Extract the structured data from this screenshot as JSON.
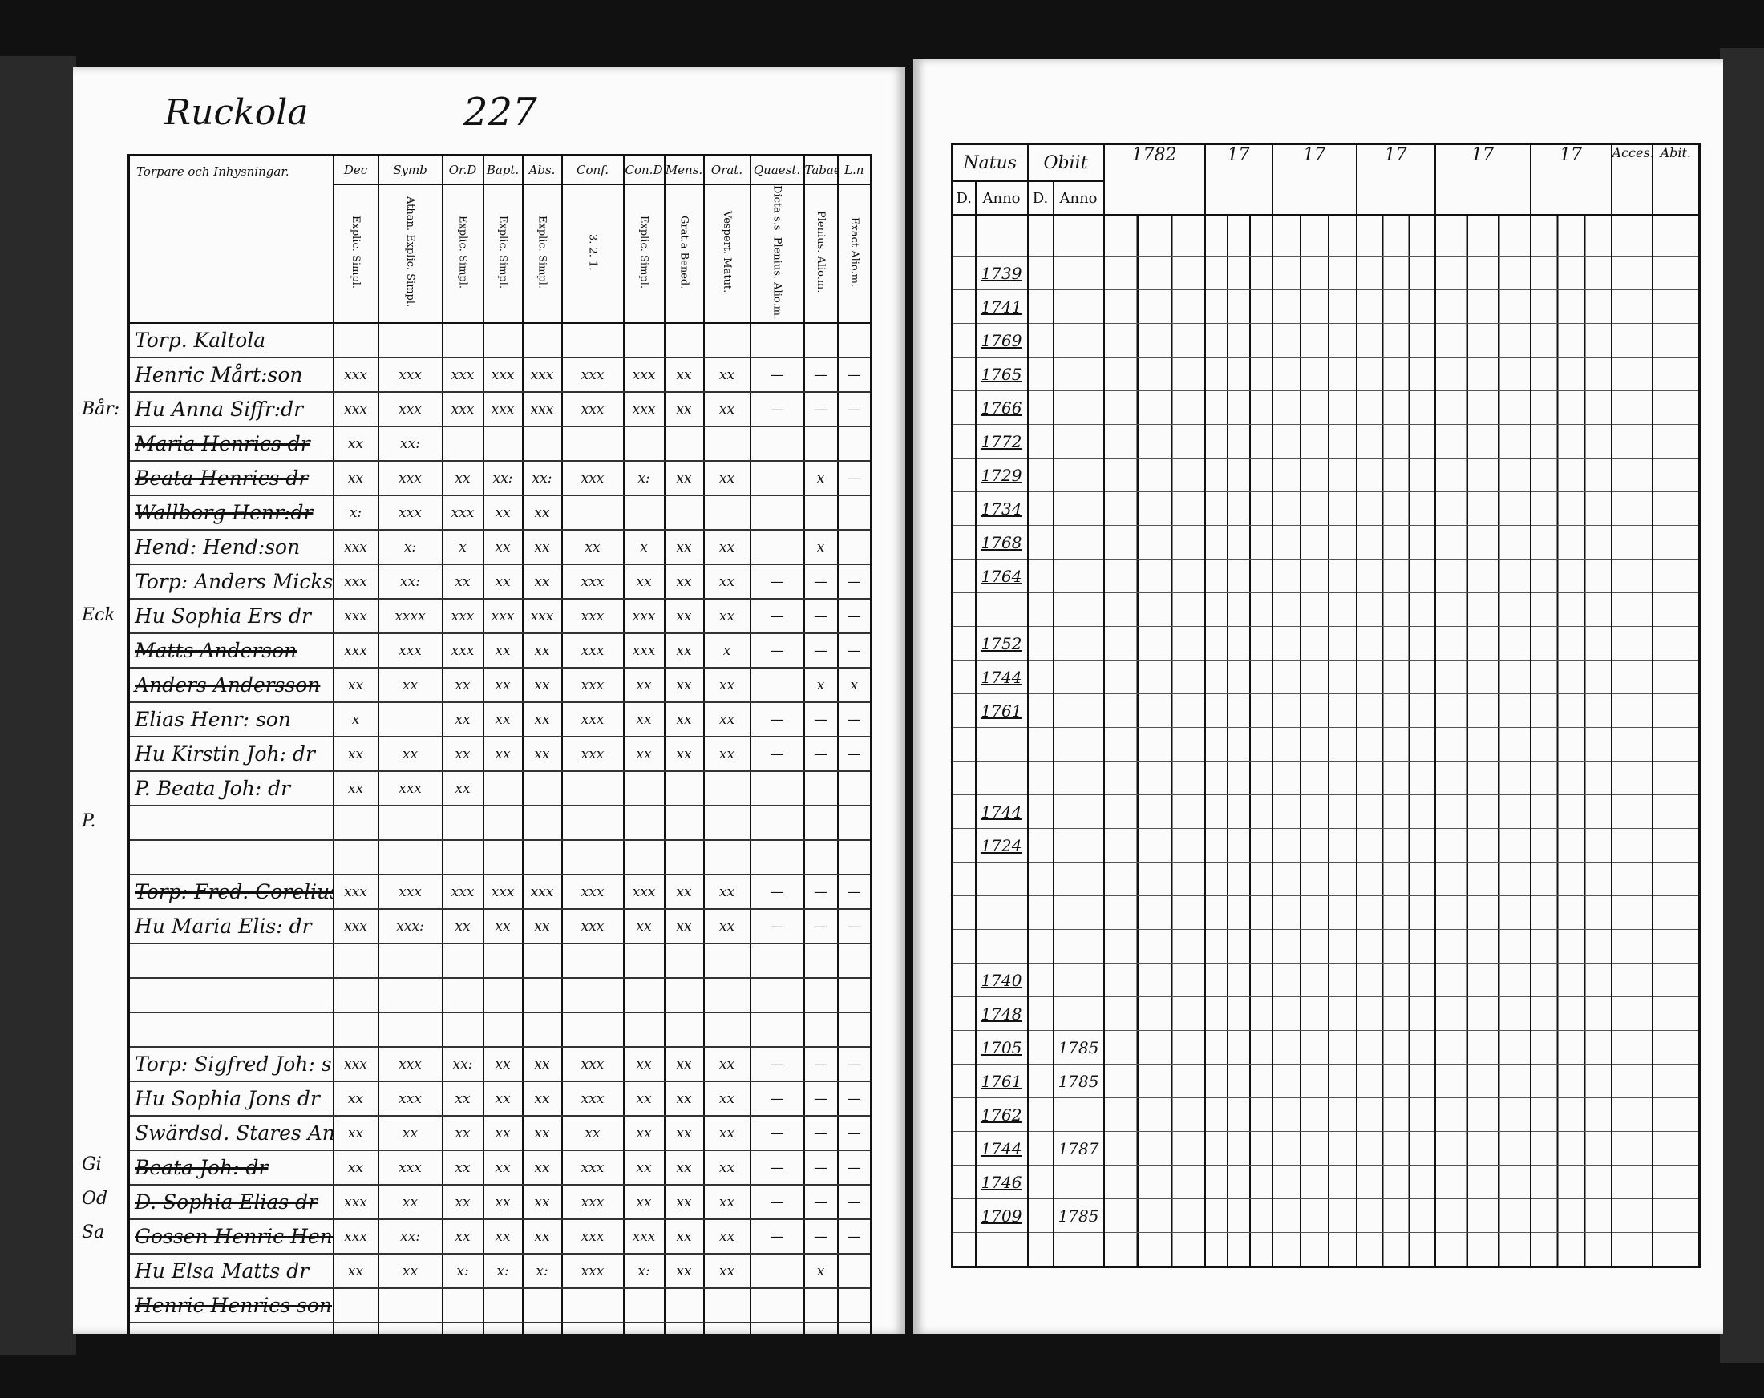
{
  "left_page": {
    "place": "Ruckola",
    "page_number": "227",
    "corner_heading": "Torpare och Inhysningar.",
    "columns": [
      {
        "head": "Dec",
        "sub": "Explic. Simpl."
      },
      {
        "head": "Symb",
        "sub": "Athan. Explic. Simpl."
      },
      {
        "head": "Or.D",
        "sub": "Explic. Simpl."
      },
      {
        "head": "Bapt.",
        "sub": "Explic. Simpl."
      },
      {
        "head": "Abs.",
        "sub": "Explic. Simpl."
      },
      {
        "head": "Conf.",
        "sub": "3. 2. 1."
      },
      {
        "head": "Con.D",
        "sub": "Explic. Simpl."
      },
      {
        "head": "Mens.",
        "sub": "Grat.a Bened."
      },
      {
        "head": "Orat.",
        "sub": "Vespert. Matut."
      },
      {
        "head": "Quaest.",
        "sub": "Dicta s.s. Plenius. Alio.m."
      },
      {
        "head": "Tabae",
        "sub": "Plenius. Alio.m."
      },
      {
        "head": "L.n",
        "sub": "Exact Alio.m."
      }
    ],
    "rows": [
      {
        "name": "Torp. Kaltola",
        "struck": false,
        "marks": [
          "",
          "",
          "",
          "",
          "",
          "",
          "",
          "",
          "",
          "",
          "",
          ""
        ]
      },
      {
        "name": "Henric Mårt:son",
        "struck": false,
        "marks": [
          "xxx",
          "xxx",
          "xxx",
          "xxx",
          "xxx",
          "xxx",
          "xxx",
          "xx",
          "xx",
          "—",
          "—",
          "—"
        ]
      },
      {
        "name": "Hu Anna Siffr:dr",
        "struck": false,
        "marks": [
          "xxx",
          "xxx",
          "xxx",
          "xxx",
          "xxx",
          "xxx",
          "xxx",
          "xx",
          "xx",
          "—",
          "—",
          "—"
        ]
      },
      {
        "name": "Maria Henrics dr",
        "struck": true,
        "marks": [
          "xx",
          "xx:",
          "",
          "",
          "",
          "",
          "",
          "",
          "",
          "",
          "",
          ""
        ]
      },
      {
        "name": "Beata Henrics dr",
        "struck": true,
        "marks": [
          "xx",
          "xxx",
          "xx",
          "xx:",
          "xx:",
          "xxx",
          "x:",
          "xx",
          "xx",
          "",
          "x",
          "—"
        ]
      },
      {
        "name": "Wallborg Henr:dr",
        "struck": true,
        "marks": [
          "x:",
          "xxx",
          "xxx",
          "xx",
          "xx",
          "",
          "",
          "",
          "",
          "",
          "",
          ""
        ]
      },
      {
        "name": "Hend: Hend:son",
        "struck": false,
        "marks": [
          "xxx",
          "x:",
          "x",
          "xx",
          "xx",
          "xx",
          "x",
          "xx",
          "xx",
          "",
          "x",
          ""
        ]
      },
      {
        "name": "Torp: Anders Micks:",
        "struck": false,
        "marks": [
          "xxx",
          "xx:",
          "xx",
          "xx",
          "xx",
          "xxx",
          "xx",
          "xx",
          "xx",
          "—",
          "—",
          "—"
        ]
      },
      {
        "name": "Hu Sophia Ers dr",
        "struck": false,
        "marks": [
          "xxx",
          "xxxx",
          "xxx",
          "xxx",
          "xxx",
          "xxx",
          "xxx",
          "xx",
          "xx",
          "—",
          "—",
          "—"
        ]
      },
      {
        "name": "Matts Anderson",
        "struck": true,
        "marks": [
          "xxx",
          "xxx",
          "xxx",
          "xx",
          "xx",
          "xxx",
          "xxx",
          "xx",
          "x",
          "—",
          "—",
          "—"
        ]
      },
      {
        "name": "Anders Andersson",
        "struck": true,
        "marks": [
          "xx",
          "xx",
          "xx",
          "xx",
          "xx",
          "xxx",
          "xx",
          "xx",
          "xx",
          "",
          "x",
          "x"
        ]
      },
      {
        "name": "Elias Henr: son",
        "struck": false,
        "marks": [
          "x",
          "",
          "xx",
          "xx",
          "xx",
          "xxx",
          "xx",
          "xx",
          "xx",
          "—",
          "—",
          "—"
        ]
      },
      {
        "name": "Hu Kirstin Joh: dr",
        "struck": false,
        "marks": [
          "xx",
          "xx",
          "xx",
          "xx",
          "xx",
          "xxx",
          "xx",
          "xx",
          "xx",
          "—",
          "—",
          "—"
        ]
      },
      {
        "name": "P. Beata Joh: dr",
        "struck": false,
        "marks": [
          "xx",
          "xxx",
          "xx",
          "",
          "",
          "",
          "",
          "",
          "",
          "",
          "",
          ""
        ]
      },
      {
        "name": "",
        "struck": false,
        "marks": [
          "",
          "",
          "",
          "",
          "",
          "",
          "",
          "",
          "",
          "",
          "",
          ""
        ]
      },
      {
        "name": "",
        "struck": false,
        "marks": [
          "",
          "",
          "",
          "",
          "",
          "",
          "",
          "",
          "",
          "",
          "",
          ""
        ]
      },
      {
        "name": "Torp: Fred. Corelius",
        "struck": true,
        "marks": [
          "xxx",
          "xxx",
          "xxx",
          "xxx",
          "xxx",
          "xxx",
          "xxx",
          "xx",
          "xx",
          "—",
          "—",
          "—"
        ]
      },
      {
        "name": "Hu Maria Elis: dr",
        "struck": false,
        "marks": [
          "xxx",
          "xxx:",
          "xx",
          "xx",
          "xx",
          "xxx",
          "xx",
          "xx",
          "xx",
          "—",
          "—",
          "—"
        ]
      },
      {
        "name": "",
        "struck": false,
        "marks": [
          "",
          "",
          "",
          "",
          "",
          "",
          "",
          "",
          "",
          "",
          "",
          ""
        ]
      },
      {
        "name": "",
        "struck": false,
        "marks": [
          "",
          "",
          "",
          "",
          "",
          "",
          "",
          "",
          "",
          "",
          "",
          ""
        ]
      },
      {
        "name": "",
        "struck": false,
        "marks": [
          "",
          "",
          "",
          "",
          "",
          "",
          "",
          "",
          "",
          "",
          "",
          ""
        ]
      },
      {
        "name": "Torp: Sigfred Joh: s",
        "struck": false,
        "marks": [
          "xxx",
          "xxx",
          "xx:",
          "xx",
          "xx",
          "xxx",
          "xx",
          "xx",
          "xx",
          "—",
          "—",
          "—"
        ]
      },
      {
        "name": "Hu Sophia Jons dr",
        "struck": false,
        "marks": [
          "xx",
          "xxx",
          "xx",
          "xx",
          "xx",
          "xxx",
          "xx",
          "xx",
          "xx",
          "—",
          "—",
          "—"
        ]
      },
      {
        "name": "Swärdsd. Stares And.",
        "struck": false,
        "marks": [
          "xx",
          "xx",
          "xx",
          "xx",
          "xx",
          "xx",
          "xx",
          "xx",
          "xx",
          "—",
          "—",
          "—"
        ]
      },
      {
        "name": "Beata Joh: dr",
        "struck": true,
        "marks": [
          "xx",
          "xxx",
          "xx",
          "xx",
          "xx",
          "xxx",
          "xx",
          "xx",
          "xx",
          "—",
          "—",
          "—"
        ]
      },
      {
        "name": "D. Sophia Elias dr",
        "struck": true,
        "marks": [
          "xxx",
          "xx",
          "xx",
          "xx",
          "xx",
          "xxx",
          "xx",
          "xx",
          "xx",
          "—",
          "—",
          "—"
        ]
      },
      {
        "name": "Gossen Henric Henr",
        "struck": true,
        "marks": [
          "xxx",
          "xx:",
          "xx",
          "xx",
          "xx",
          "xxx",
          "xxx",
          "xx",
          "xx",
          "—",
          "—",
          "—"
        ]
      },
      {
        "name": "Hu Elsa Matts dr",
        "struck": false,
        "marks": [
          "xx",
          "xx",
          "x:",
          "x:",
          "x:",
          "xxx",
          "x:",
          "xx",
          "xx",
          "",
          "x",
          ""
        ]
      },
      {
        "name": "Henric Henrics son",
        "struck": true,
        "marks": [
          "",
          "",
          "",
          "",
          "",
          "",
          "",
          "",
          "",
          "",
          "",
          ""
        ]
      },
      {
        "name": "",
        "struck": false,
        "marks": [
          "",
          "",
          "",
          "",
          "",
          "",
          "",
          "",
          "",
          "",
          "",
          ""
        ]
      }
    ],
    "margin_notes": [
      {
        "text": "Bår:",
        "row": 4
      },
      {
        "text": "Eck",
        "row": 10
      },
      {
        "text": "P.",
        "row": 16
      },
      {
        "text": "Gi",
        "row": 26
      },
      {
        "text": "Od",
        "row": 27
      },
      {
        "text": "Sa",
        "row": 28
      }
    ]
  },
  "right_page": {
    "headers": [
      "Natus",
      "Obiit",
      "1782",
      "17",
      "17",
      "17",
      "17",
      "17",
      "Acces.",
      "Abit."
    ],
    "sub_headers": {
      "natus_day": "D.",
      "natus_year": "Anno",
      "obiit_day": "D.",
      "obiit_year": "Anno"
    },
    "rows": [
      {
        "natus": "1739",
        "obiit": ""
      },
      {
        "natus": "1741",
        "obiit": ""
      },
      {
        "natus": "1769",
        "obiit": ""
      },
      {
        "natus": "1765",
        "obiit": ""
      },
      {
        "natus": "1766",
        "obiit": ""
      },
      {
        "natus": "1772",
        "obiit": ""
      },
      {
        "natus": "1729",
        "obiit": ""
      },
      {
        "natus": "1734",
        "obiit": ""
      },
      {
        "natus": "1768",
        "obiit": ""
      },
      {
        "natus": "1764",
        "obiit": ""
      },
      {
        "natus": "",
        "obiit": ""
      },
      {
        "natus": "1752",
        "obiit": ""
      },
      {
        "natus": "1744",
        "obiit": ""
      },
      {
        "natus": "1761",
        "obiit": ""
      },
      {
        "natus": "",
        "obiit": ""
      },
      {
        "natus": "",
        "obiit": ""
      },
      {
        "natus": "1744",
        "obiit": ""
      },
      {
        "natus": "1724",
        "obiit": ""
      },
      {
        "natus": "",
        "obiit": ""
      },
      {
        "natus": "",
        "obiit": ""
      },
      {
        "natus": "",
        "obiit": ""
      },
      {
        "natus": "1740",
        "obiit": ""
      },
      {
        "natus": "1748",
        "obiit": ""
      },
      {
        "natus": "1705",
        "obiit": "1785"
      },
      {
        "natus": "1761",
        "obiit": "1785"
      },
      {
        "natus": "1762",
        "obiit": ""
      },
      {
        "natus": "1744",
        "obiit": "1787"
      },
      {
        "natus": "1746",
        "obiit": ""
      },
      {
        "natus": "1709",
        "obiit": "1785"
      },
      {
        "natus": "",
        "obiit": ""
      }
    ]
  }
}
